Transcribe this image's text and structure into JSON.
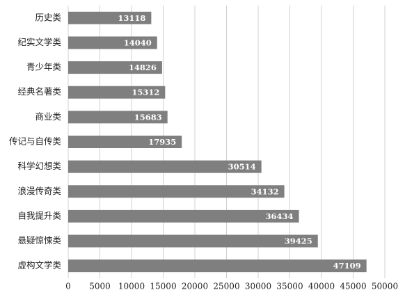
{
  "chart_data": {
    "type": "bar",
    "orientation": "horizontal",
    "categories": [
      "历史类",
      "纪实文学类",
      "青少年类",
      "经典名著类",
      "商业类",
      "传记与自传类",
      "科学幻想类",
      "浪漫传奇类",
      "自我提升类",
      "悬疑惊悚类",
      "虚构文学类"
    ],
    "values": [
      13118,
      14040,
      14826,
      15312,
      15683,
      17935,
      30514,
      34132,
      36434,
      39425,
      47109
    ],
    "color": "#7f7f7f",
    "xlim": [
      0,
      50000
    ],
    "xticks": [
      0,
      5000,
      10000,
      15000,
      20000,
      25000,
      30000,
      35000,
      40000,
      45000,
      50000
    ],
    "grid": true
  }
}
